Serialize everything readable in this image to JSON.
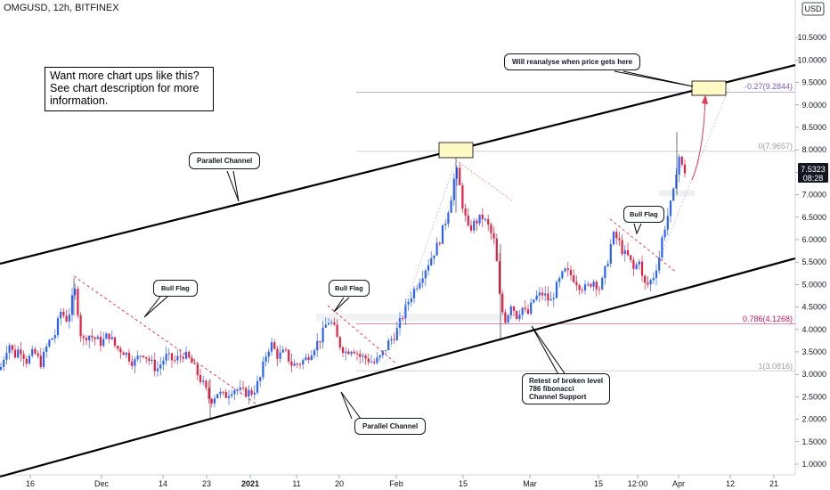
{
  "header": {
    "symbol": "OMGUSD, 12h, BITFINEX",
    "currency_badge": "USD"
  },
  "promo": {
    "line1": "Want more chart ups like this?",
    "line2": "See chart description for more",
    "line3": "information."
  },
  "annotations": {
    "reanalyse": "Will reanalyse when price gets here",
    "parallel_top": "Parallel Channel",
    "parallel_bottom": "Parallel Channel",
    "bull_flag_1": "Bull Flag",
    "bull_flag_2": "Bull Flag",
    "bull_flag_3": "Bull Flag",
    "retest_line1": "Retest of broken level",
    "retest_line2": "786 fibonacci",
    "retest_line3": "Channel Support"
  },
  "fib_labels": {
    "ext": "-0.27(9.2844)",
    "zero": "0(7.9657)",
    "f786": "0.786(4.1268)",
    "one": "1(3.0816)"
  },
  "price_tag": {
    "price": "7.5323",
    "countdown": "08:28"
  },
  "colors": {
    "up": "#2962ff",
    "down": "#e91e3f",
    "fib786": "#c2185b",
    "fibext": "#7e57c2",
    "fib": "#9e9e9e"
  },
  "chart_data": {
    "type": "candlestick",
    "symbol": "OMGUSD",
    "interval": "12h",
    "exchange": "BITFINEX",
    "y_axis": {
      "ticks": [
        1.0,
        1.5,
        2.0,
        2.5,
        3.0,
        3.5,
        4.0,
        4.5,
        5.0,
        5.5,
        6.0,
        6.5,
        7.0,
        7.5,
        8.0,
        8.5,
        9.0,
        9.5,
        10.0,
        10.5
      ],
      "range": [
        0.8,
        11.3
      ]
    },
    "x_axis": {
      "ticks": [
        "16",
        "Dec",
        "14",
        "23",
        "2021",
        "11",
        "20",
        "Feb",
        "15",
        "Mar",
        "15",
        "12:00",
        "Apr",
        "12",
        "21"
      ]
    },
    "last_price": 7.5323,
    "fibonacci": [
      {
        "level": "-0.27",
        "price": 9.2844
      },
      {
        "level": "0",
        "price": 7.9657
      },
      {
        "level": "0.786",
        "price": 4.1268
      },
      {
        "level": "1",
        "price": 3.0816
      }
    ],
    "close_path": [
      {
        "x": 0,
        "v": 3.1
      },
      {
        "x": 6,
        "v": 3.5
      },
      {
        "x": 10,
        "v": 3.7
      },
      {
        "x": 16,
        "v": 3.4
      },
      {
        "x": 22,
        "v": 3.6
      },
      {
        "x": 30,
        "v": 3.3
      },
      {
        "x": 38,
        "v": 3.5
      },
      {
        "x": 46,
        "v": 3.25
      },
      {
        "x": 54,
        "v": 3.7
      },
      {
        "x": 62,
        "v": 3.9
      },
      {
        "x": 68,
        "v": 4.4
      },
      {
        "x": 76,
        "v": 4.2
      },
      {
        "x": 80,
        "v": 4.6
      },
      {
        "x": 85,
        "v": 4.9
      },
      {
        "x": 88,
        "v": 4.3
      },
      {
        "x": 92,
        "v": 3.7
      },
      {
        "x": 98,
        "v": 3.9
      },
      {
        "x": 106,
        "v": 3.8
      },
      {
        "x": 114,
        "v": 3.7
      },
      {
        "x": 122,
        "v": 3.9
      },
      {
        "x": 130,
        "v": 3.6
      },
      {
        "x": 140,
        "v": 3.5
      },
      {
        "x": 150,
        "v": 3.25
      },
      {
        "x": 160,
        "v": 3.5
      },
      {
        "x": 168,
        "v": 3.3
      },
      {
        "x": 176,
        "v": 3.1
      },
      {
        "x": 186,
        "v": 3.4
      },
      {
        "x": 196,
        "v": 3.3
      },
      {
        "x": 206,
        "v": 3.45
      },
      {
        "x": 214,
        "v": 3.3
      },
      {
        "x": 222,
        "v": 3.0
      },
      {
        "x": 230,
        "v": 2.7
      },
      {
        "x": 236,
        "v": 2.4
      },
      {
        "x": 244,
        "v": 2.6
      },
      {
        "x": 252,
        "v": 2.5
      },
      {
        "x": 262,
        "v": 2.7
      },
      {
        "x": 272,
        "v": 2.6
      },
      {
        "x": 284,
        "v": 2.6
      },
      {
        "x": 292,
        "v": 2.9
      },
      {
        "x": 298,
        "v": 3.4
      },
      {
        "x": 304,
        "v": 3.7
      },
      {
        "x": 312,
        "v": 3.4
      },
      {
        "x": 320,
        "v": 3.5
      },
      {
        "x": 328,
        "v": 3.2
      },
      {
        "x": 336,
        "v": 3.25
      },
      {
        "x": 344,
        "v": 3.35
      },
      {
        "x": 352,
        "v": 3.6
      },
      {
        "x": 360,
        "v": 3.8
      },
      {
        "x": 368,
        "v": 4.2
      },
      {
        "x": 374,
        "v": 4.1
      },
      {
        "x": 380,
        "v": 3.7
      },
      {
        "x": 388,
        "v": 3.5
      },
      {
        "x": 396,
        "v": 3.6
      },
      {
        "x": 404,
        "v": 3.4
      },
      {
        "x": 412,
        "v": 3.35
      },
      {
        "x": 420,
        "v": 3.25
      },
      {
        "x": 428,
        "v": 3.4
      },
      {
        "x": 436,
        "v": 3.7
      },
      {
        "x": 444,
        "v": 3.9
      },
      {
        "x": 452,
        "v": 4.3
      },
      {
        "x": 460,
        "v": 4.7
      },
      {
        "x": 468,
        "v": 5.0
      },
      {
        "x": 476,
        "v": 5.3
      },
      {
        "x": 484,
        "v": 5.6
      },
      {
        "x": 492,
        "v": 5.9
      },
      {
        "x": 500,
        "v": 6.4
      },
      {
        "x": 506,
        "v": 6.9
      },
      {
        "x": 512,
        "v": 7.6
      },
      {
        "x": 516,
        "v": 7.2
      },
      {
        "x": 520,
        "v": 6.7
      },
      {
        "x": 526,
        "v": 6.2
      },
      {
        "x": 534,
        "v": 6.4
      },
      {
        "x": 542,
        "v": 6.5
      },
      {
        "x": 548,
        "v": 6.3
      },
      {
        "x": 556,
        "v": 5.9
      },
      {
        "x": 562,
        "v": 4.5
      },
      {
        "x": 568,
        "v": 4.2
      },
      {
        "x": 574,
        "v": 4.6
      },
      {
        "x": 580,
        "v": 4.3
      },
      {
        "x": 586,
        "v": 4.5
      },
      {
        "x": 592,
        "v": 4.3
      },
      {
        "x": 600,
        "v": 4.7
      },
      {
        "x": 610,
        "v": 4.8
      },
      {
        "x": 618,
        "v": 4.6
      },
      {
        "x": 626,
        "v": 5.0
      },
      {
        "x": 634,
        "v": 5.3
      },
      {
        "x": 642,
        "v": 5.2
      },
      {
        "x": 650,
        "v": 5.0
      },
      {
        "x": 658,
        "v": 4.9
      },
      {
        "x": 666,
        "v": 5.1
      },
      {
        "x": 674,
        "v": 4.9
      },
      {
        "x": 682,
        "v": 5.5
      },
      {
        "x": 688,
        "v": 6.1
      },
      {
        "x": 694,
        "v": 6.0
      },
      {
        "x": 700,
        "v": 5.7
      },
      {
        "x": 706,
        "v": 5.6
      },
      {
        "x": 712,
        "v": 5.3
      },
      {
        "x": 718,
        "v": 5.6
      },
      {
        "x": 722,
        "v": 5.0
      },
      {
        "x": 728,
        "v": 5.0
      },
      {
        "x": 734,
        "v": 5.2
      },
      {
        "x": 740,
        "v": 5.6
      },
      {
        "x": 744,
        "v": 6.1
      },
      {
        "x": 748,
        "v": 6.4
      },
      {
        "x": 752,
        "v": 6.7
      },
      {
        "x": 756,
        "v": 7.0
      },
      {
        "x": 759,
        "v": 7.5
      },
      {
        "x": 762,
        "v": 7.9
      },
      {
        "x": 766,
        "v": 7.6
      },
      {
        "x": 770,
        "v": 7.5
      }
    ]
  }
}
